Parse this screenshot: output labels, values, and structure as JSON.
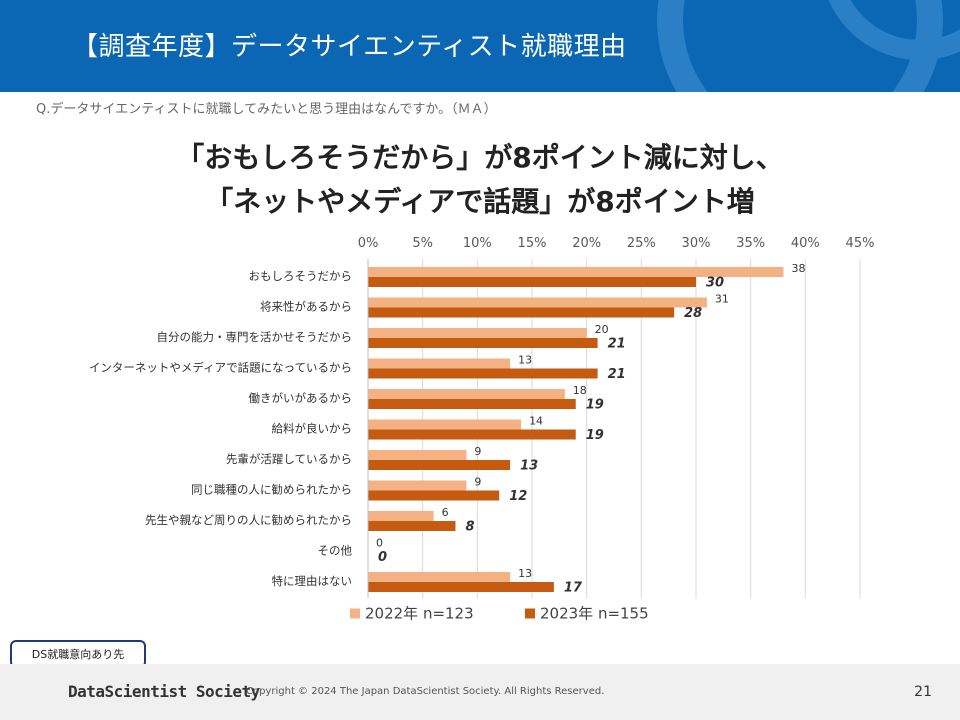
{
  "header": {
    "title": "【調査年度】データサイエンティスト就職理由"
  },
  "question": "Q.データサイエンティストに就職してみたいと思う理由はなんですか。（ＭＡ）",
  "headline": {
    "line1": "「おもしろそうだから」が8ポイント減に対し、",
    "line2": "「ネットやメディアで話題」が8ポイント増"
  },
  "tag": "DS就職意向あり先",
  "footer": {
    "logo": "DataScientist Society",
    "copyright": "Copyright © 2024  The Japan DataScientist Society. All Rights Reserved.",
    "page": "21"
  },
  "colors": {
    "header": "#0b67b4",
    "series2022": "#f4b183",
    "series2023": "#c55a11"
  },
  "chart_data": {
    "type": "bar",
    "orientation": "horizontal",
    "title": "",
    "xlabel": "",
    "ylabel": "",
    "xlim": [
      0,
      45
    ],
    "tick_labels": [
      "0%",
      "5%",
      "10%",
      "15%",
      "20%",
      "25%",
      "30%",
      "35%",
      "40%",
      "45%"
    ],
    "tick_values": [
      0,
      5,
      10,
      15,
      20,
      25,
      30,
      35,
      40,
      45
    ],
    "grid": true,
    "legend": "bottom",
    "categories": [
      "おもしろそうだから",
      "将来性があるから",
      "自分の能力・専門を活かせそうだから",
      "インターネットやメディアで話題になっているから",
      "働きがいがあるから",
      "給料が良いから",
      "先輩が活躍しているから",
      "同じ職種の人に勧められたから",
      "先生や親など周りの人に勧められたから",
      "その他",
      "特に理由はない"
    ],
    "series": [
      {
        "name": "2022年 n=123",
        "color": "#f4b183",
        "values": [
          38,
          31,
          20,
          13,
          18,
          14,
          9,
          9,
          6,
          0,
          13
        ]
      },
      {
        "name": "2023年 n=155",
        "color": "#c55a11",
        "values": [
          30,
          28,
          21,
          21,
          19,
          19,
          13,
          12,
          8,
          0,
          17
        ]
      }
    ]
  }
}
